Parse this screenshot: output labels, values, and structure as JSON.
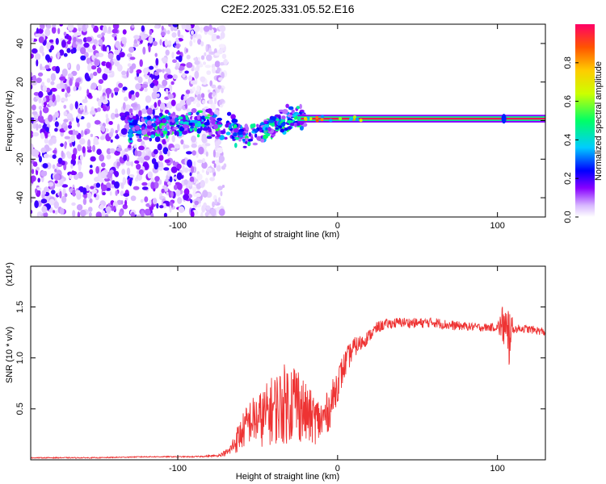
{
  "title": "C2E2.2025.331.05.52.E16",
  "chart_data": [
    {
      "type": "heatmap",
      "panel": "top",
      "xlabel": "Height of straight line (km)",
      "ylabel": "Frequency (Hz)",
      "xlim": [
        -192,
        130
      ],
      "ylim": [
        -50,
        50
      ],
      "xticks": [
        -100,
        0,
        100
      ],
      "yticks": [
        -40,
        -20,
        0,
        20,
        40
      ],
      "colorbar": {
        "label": "Normalized spectral amplitude",
        "range": [
          0.0,
          1.0
        ],
        "ticks": [
          "0.0",
          "0.2",
          "0.4",
          "0.6",
          "0.8"
        ],
        "colormap": [
          "#ffffff",
          "#d8b8ff",
          "#8800ff",
          "#0000ff",
          "#00ccff",
          "#00ff66",
          "#ccff00",
          "#ffcc00",
          "#ff5500",
          "#ff0066"
        ]
      },
      "regions": [
        {
          "name": "noise",
          "x_range": [
            -192,
            -70
          ],
          "freq_range": [
            -50,
            50
          ],
          "amplitude": "0.0-0.3"
        },
        {
          "name": "transition",
          "x_range": [
            -130,
            -20
          ],
          "freq_range": [
            -20,
            12
          ],
          "amplitude": "0.2-0.6"
        },
        {
          "name": "tone",
          "x_range": [
            -25,
            130
          ],
          "freq": 1,
          "amplitude": "0.9-1.0"
        }
      ]
    },
    {
      "type": "line",
      "panel": "bottom",
      "xlabel": "Height of straight line (km)",
      "ylabel": "SNR (10 * v/v)",
      "scale_label": "(x10⁴)",
      "xlim": [
        -192,
        130
      ],
      "ylim": [
        0,
        1.9
      ],
      "xticks": [
        -100,
        0,
        100
      ],
      "yticks": [
        "0.5",
        "1.0",
        "1.5"
      ],
      "color": "#ee3333",
      "series": [
        {
          "name": "SNR",
          "x": [
            -192,
            -150,
            -120,
            -90,
            -75,
            -68,
            -62,
            -55,
            -48,
            -40,
            -33,
            -26,
            -20,
            -15,
            -10,
            -5,
            0,
            5,
            10,
            15,
            20,
            25,
            30,
            40,
            50,
            60,
            70,
            80,
            90,
            100,
            104,
            106,
            108,
            110,
            115,
            120,
            125,
            130
          ],
          "values": [
            0.02,
            0.02,
            0.03,
            0.03,
            0.04,
            0.08,
            0.22,
            0.38,
            0.4,
            0.5,
            0.55,
            0.6,
            0.45,
            0.4,
            0.38,
            0.5,
            0.75,
            0.95,
            1.1,
            1.15,
            1.22,
            1.3,
            1.33,
            1.35,
            1.34,
            1.35,
            1.32,
            1.31,
            1.3,
            1.3,
            1.33,
            1.05,
            1.3,
            1.28,
            1.29,
            1.28,
            1.27,
            1.25
          ],
          "spread": [
            0.005,
            0.005,
            0.005,
            0.005,
            0.01,
            0.04,
            0.15,
            0.22,
            0.28,
            0.35,
            0.4,
            0.42,
            0.3,
            0.25,
            0.22,
            0.2,
            0.18,
            0.14,
            0.1,
            0.08,
            0.06,
            0.06,
            0.05,
            0.05,
            0.05,
            0.05,
            0.05,
            0.04,
            0.04,
            0.04,
            0.25,
            0.55,
            0.25,
            0.04,
            0.04,
            0.04,
            0.04,
            0.04
          ]
        }
      ]
    }
  ]
}
